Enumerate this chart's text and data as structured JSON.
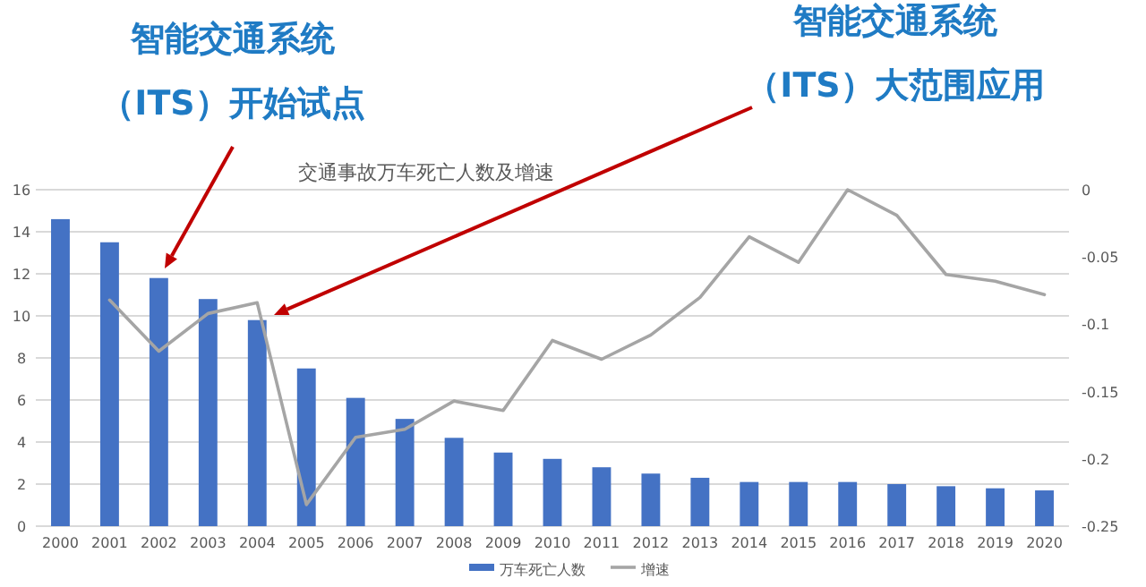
{
  "chart_data": {
    "type": "bar",
    "title": "交通事故万车死亡人数及增速",
    "categories": [
      "2000",
      "2001",
      "2002",
      "2003",
      "2004",
      "2005",
      "2006",
      "2007",
      "2008",
      "2009",
      "2010",
      "2011",
      "2012",
      "2013",
      "2014",
      "2015",
      "2016",
      "2017",
      "2018",
      "2019",
      "2020"
    ],
    "series": [
      {
        "name": "万车死亡人数",
        "color": "#4472c4",
        "values": [
          14.6,
          13.5,
          11.8,
          10.8,
          9.8,
          7.5,
          6.1,
          5.1,
          4.2,
          3.5,
          3.2,
          2.8,
          2.5,
          2.3,
          2.1,
          2.1,
          2.1,
          2.0,
          1.9,
          1.8,
          1.7
        ]
      },
      {
        "name": "增速",
        "type": "line",
        "axis": "y2",
        "color": "#a5a5a5",
        "values": [
          null,
          -0.082,
          -0.12,
          -0.092,
          -0.084,
          -0.234,
          -0.184,
          -0.178,
          -0.157,
          -0.164,
          -0.112,
          -0.126,
          -0.108,
          -0.08,
          -0.035,
          -0.054,
          0,
          -0.019,
          -0.063,
          -0.068,
          -0.078
        ]
      }
    ],
    "ylim": [
      0,
      16
    ],
    "yticks": [
      0,
      2,
      4,
      6,
      8,
      10,
      12,
      14,
      16
    ],
    "y2lim": [
      -0.25,
      0
    ],
    "y2ticks": [
      -0.25,
      -0.2,
      -0.15,
      -0.1,
      -0.05,
      0
    ],
    "grid": "y",
    "legend": "bottom",
    "annotations": [
      "智能交通系统",
      "（ITS）开始试点",
      "智能交通系统",
      "（ITS）大范围应用"
    ]
  }
}
